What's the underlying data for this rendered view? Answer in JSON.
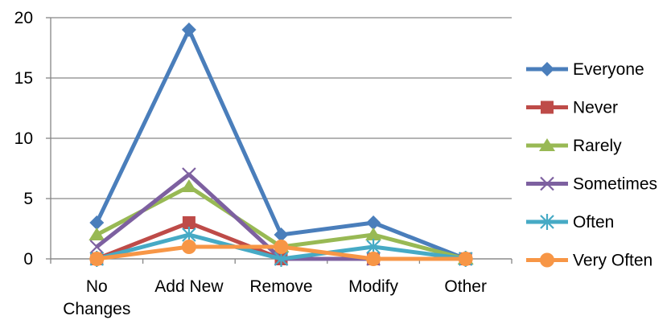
{
  "chart_data": {
    "type": "line",
    "title": "",
    "xlabel": "",
    "ylabel": "",
    "categories": [
      [
        "No",
        "Changes"
      ],
      [
        "Add New"
      ],
      [
        "Remove"
      ],
      [
        "Modify"
      ],
      [
        "Other"
      ]
    ],
    "ylim": [
      0,
      20
    ],
    "yticks": [
      0,
      5,
      10,
      15,
      20
    ],
    "grid": "horizontal",
    "legend_position": "right",
    "series": [
      {
        "name": "Everyone",
        "values": [
          3,
          19,
          2,
          3,
          0
        ],
        "color": "#4A7EBB",
        "marker": "diamond"
      },
      {
        "name": "Never",
        "values": [
          0,
          3,
          0,
          0,
          0
        ],
        "color": "#BE4B48",
        "marker": "square"
      },
      {
        "name": "Rarely",
        "values": [
          2,
          6,
          1,
          2,
          0
        ],
        "color": "#98B954",
        "marker": "triangle"
      },
      {
        "name": "Sometimes",
        "values": [
          1,
          7,
          0,
          0,
          0
        ],
        "color": "#7D60A0",
        "marker": "x"
      },
      {
        "name": "Often",
        "values": [
          0,
          2,
          0,
          1,
          0
        ],
        "color": "#46AAC5",
        "marker": "star"
      },
      {
        "name": "Very Often",
        "values": [
          0,
          1,
          1,
          0,
          0
        ],
        "color": "#F79646",
        "marker": "circle"
      }
    ]
  }
}
